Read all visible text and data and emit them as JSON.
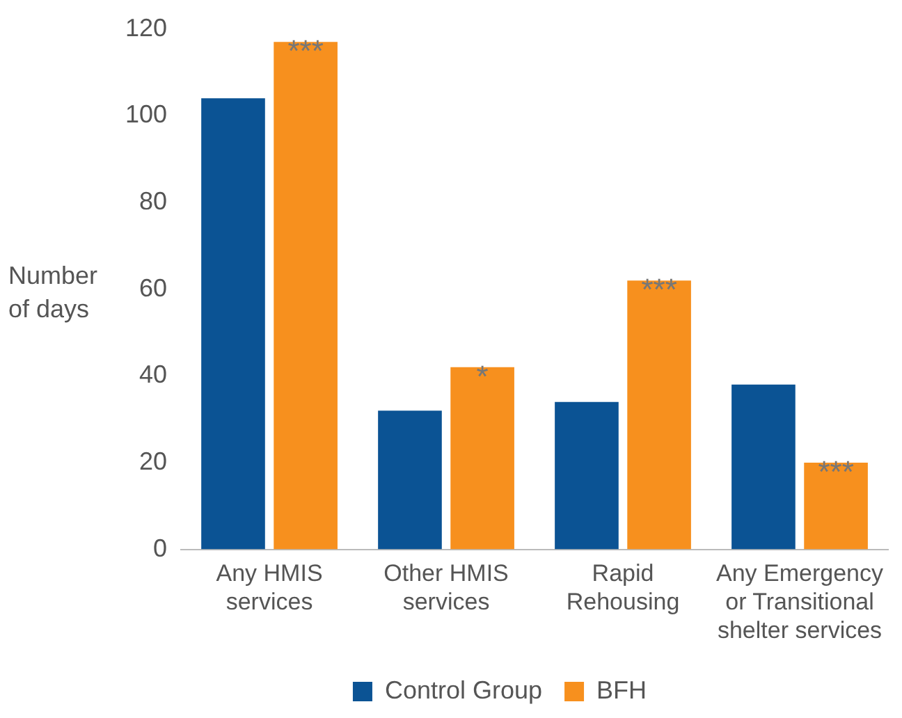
{
  "chart_data": {
    "type": "bar",
    "ylabel": "Number of days",
    "categories": [
      "Any HMIS services",
      "Other HMIS services",
      "Rapid Rehousing",
      "Any Emergency or Transitional shelter services"
    ],
    "series": [
      {
        "name": "Control Group",
        "color": "#0b5394",
        "values": [
          104,
          32,
          34,
          38
        ]
      },
      {
        "name": "BFH",
        "color": "#f7901e",
        "values": [
          117,
          42,
          62,
          20
        ]
      }
    ],
    "ylim": [
      0,
      120
    ],
    "yticks": [
      0,
      20,
      40,
      60,
      80,
      100,
      120
    ],
    "grid": false,
    "legend": "bottom",
    "annotations": [
      {
        "text": "***",
        "x": "Any HMIS services",
        "y": 117
      },
      {
        "text": "*",
        "x": "Other HMIS services",
        "y": 42
      },
      {
        "text": "***",
        "x": "Rapid Rehousing",
        "y": 62
      },
      {
        "text": "***",
        "x": "Any Emergency or Transitional shelter services",
        "y": 20
      }
    ]
  }
}
